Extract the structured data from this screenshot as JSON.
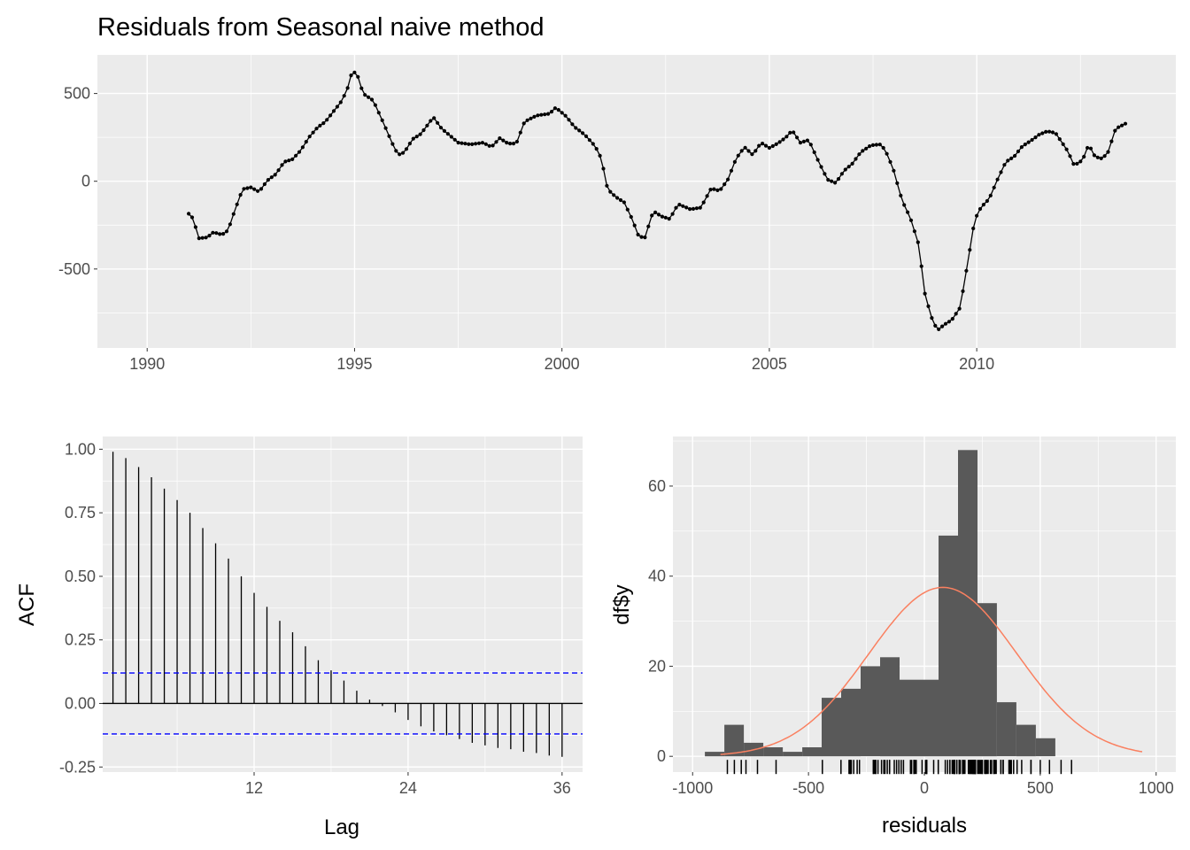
{
  "colors": {
    "panel_bg": "#ebebeb",
    "grid_major": "#ffffff",
    "line": "#000000",
    "bar_fill": "#595959",
    "ci_line": "#0000ff",
    "density_curve": "#fa8060",
    "tick_text": "#4d4d4d"
  },
  "chart_data": [
    {
      "type": "line",
      "title": "Residuals from Seasonal naive method",
      "xlabel": "",
      "ylabel": "",
      "xlim": [
        1988.8,
        2014.8
      ],
      "ylim": [
        -950,
        720
      ],
      "x_ticks": [
        1990,
        1995,
        2000,
        2005,
        2010
      ],
      "x_tick_labels": [
        "1990",
        "1995",
        "2000",
        "2005",
        "2010"
      ],
      "y_ticks": [
        -500,
        0,
        500
      ],
      "y_tick_labels": [
        "-500",
        "0",
        "500"
      ],
      "points": true,
      "start": 1991.0,
      "frequency": 12,
      "anchors": [
        [
          1991.0,
          -185
        ],
        [
          1991.1,
          -210
        ],
        [
          1991.25,
          -325
        ],
        [
          1991.45,
          -320
        ],
        [
          1991.6,
          -290
        ],
        [
          1991.8,
          -305
        ],
        [
          1991.95,
          -280
        ],
        [
          1992.1,
          -175
        ],
        [
          1992.3,
          -45
        ],
        [
          1992.5,
          -35
        ],
        [
          1992.7,
          -60
        ],
        [
          1992.9,
          5
        ],
        [
          1993.1,
          40
        ],
        [
          1993.3,
          110
        ],
        [
          1993.5,
          125
        ],
        [
          1993.7,
          175
        ],
        [
          1993.9,
          250
        ],
        [
          1994.1,
          305
        ],
        [
          1994.3,
          340
        ],
        [
          1994.5,
          400
        ],
        [
          1994.7,
          460
        ],
        [
          1994.85,
          540
        ],
        [
          1994.95,
          635
        ],
        [
          1995.1,
          590
        ],
        [
          1995.2,
          500
        ],
        [
          1995.45,
          460
        ],
        [
          1995.7,
          330
        ],
        [
          1995.9,
          220
        ],
        [
          1996.05,
          150
        ],
        [
          1996.2,
          165
        ],
        [
          1996.4,
          240
        ],
        [
          1996.6,
          270
        ],
        [
          1996.9,
          365
        ],
        [
          1997.1,
          300
        ],
        [
          1997.3,
          260
        ],
        [
          1997.5,
          220
        ],
        [
          1997.8,
          210
        ],
        [
          1998.1,
          220
        ],
        [
          1998.3,
          195
        ],
        [
          1998.5,
          245
        ],
        [
          1998.7,
          215
        ],
        [
          1998.9,
          215
        ],
        [
          1999.1,
          340
        ],
        [
          1999.4,
          375
        ],
        [
          1999.7,
          385
        ],
        [
          1999.85,
          420
        ],
        [
          2000.1,
          370
        ],
        [
          2000.3,
          310
        ],
        [
          2000.55,
          265
        ],
        [
          2000.8,
          200
        ],
        [
          2000.95,
          130
        ],
        [
          2001.1,
          -45
        ],
        [
          2001.3,
          -90
        ],
        [
          2001.5,
          -120
        ],
        [
          2001.7,
          -220
        ],
        [
          2001.85,
          -315
        ],
        [
          2002.0,
          -320
        ],
        [
          2002.2,
          -170
        ],
        [
          2002.4,
          -200
        ],
        [
          2002.6,
          -215
        ],
        [
          2002.8,
          -130
        ],
        [
          2003.1,
          -160
        ],
        [
          2003.35,
          -150
        ],
        [
          2003.6,
          -40
        ],
        [
          2003.8,
          -55
        ],
        [
          2004.0,
          10
        ],
        [
          2004.2,
          130
        ],
        [
          2004.4,
          195
        ],
        [
          2004.6,
          150
        ],
        [
          2004.8,
          220
        ],
        [
          2005.0,
          190
        ],
        [
          2005.2,
          215
        ],
        [
          2005.4,
          250
        ],
        [
          2005.55,
          290
        ],
        [
          2005.75,
          220
        ],
        [
          2005.95,
          235
        ],
        [
          2006.15,
          130
        ],
        [
          2006.4,
          10
        ],
        [
          2006.6,
          -10
        ],
        [
          2006.8,
          60
        ],
        [
          2007.0,
          100
        ],
        [
          2007.2,
          165
        ],
        [
          2007.45,
          205
        ],
        [
          2007.7,
          210
        ],
        [
          2007.85,
          150
        ],
        [
          2008.0,
          60
        ],
        [
          2008.2,
          -110
        ],
        [
          2008.4,
          -210
        ],
        [
          2008.6,
          -360
        ],
        [
          2008.75,
          -640
        ],
        [
          2008.9,
          -770
        ],
        [
          2009.05,
          -850
        ],
        [
          2009.2,
          -820
        ],
        [
          2009.4,
          -790
        ],
        [
          2009.6,
          -720
        ],
        [
          2009.8,
          -440
        ],
        [
          2009.95,
          -220
        ],
        [
          2010.1,
          -150
        ],
        [
          2010.3,
          -100
        ],
        [
          2010.5,
          10
        ],
        [
          2010.7,
          110
        ],
        [
          2010.9,
          140
        ],
        [
          2011.1,
          200
        ],
        [
          2011.3,
          230
        ],
        [
          2011.5,
          265
        ],
        [
          2011.7,
          285
        ],
        [
          2011.9,
          275
        ],
        [
          2012.1,
          205
        ],
        [
          2012.2,
          170
        ],
        [
          2012.35,
          90
        ],
        [
          2012.55,
          120
        ],
        [
          2012.7,
          210
        ],
        [
          2012.85,
          140
        ],
        [
          2013.0,
          130
        ],
        [
          2013.15,
          155
        ],
        [
          2013.35,
          300
        ],
        [
          2013.6,
          330
        ]
      ]
    },
    {
      "type": "bar",
      "subtype": "acf",
      "xlabel": "Lag",
      "ylabel": "ACF",
      "xlim": [
        0.2,
        37.6
      ],
      "ylim": [
        -0.27,
        1.05
      ],
      "x_ticks": [
        12,
        24,
        36
      ],
      "x_tick_labels": [
        "12",
        "24",
        "36"
      ],
      "y_ticks": [
        -0.25,
        0.0,
        0.25,
        0.5,
        0.75,
        1.0
      ],
      "y_tick_labels": [
        "-0.25",
        "0.00",
        "0.25",
        "0.50",
        "0.75",
        "1.00"
      ],
      "lags": [
        1,
        2,
        3,
        4,
        5,
        6,
        7,
        8,
        9,
        10,
        11,
        12,
        13,
        14,
        15,
        16,
        17,
        18,
        19,
        20,
        21,
        22,
        23,
        24,
        25,
        26,
        27,
        28,
        29,
        30,
        31,
        32,
        33,
        34,
        35,
        36
      ],
      "values": [
        0.99,
        0.965,
        0.93,
        0.89,
        0.845,
        0.8,
        0.75,
        0.69,
        0.63,
        0.57,
        0.5,
        0.435,
        0.38,
        0.325,
        0.28,
        0.225,
        0.17,
        0.13,
        0.09,
        0.05,
        0.015,
        -0.01,
        -0.035,
        -0.065,
        -0.09,
        -0.11,
        -0.125,
        -0.14,
        -0.155,
        -0.165,
        -0.175,
        -0.18,
        -0.19,
        -0.195,
        -0.205,
        -0.21
      ],
      "ci_bound": 0.12
    },
    {
      "type": "bar",
      "subtype": "histogram",
      "xlabel": "residuals",
      "ylabel": "df$y",
      "xlim": [
        -1085,
        1085
      ],
      "ylim": [
        -3.5,
        71
      ],
      "x_ticks": [
        -1000,
        -500,
        0,
        500,
        1000
      ],
      "x_tick_labels": [
        "-1000",
        "-500",
        "0",
        "500",
        "1000"
      ],
      "y_ticks": [
        0,
        20,
        40,
        60
      ],
      "y_tick_labels": [
        "0",
        "20",
        "40",
        "60"
      ],
      "bin_width": 84,
      "bin_centers": [
        -905,
        -821,
        -737,
        -653,
        -569,
        -485,
        -401,
        -317,
        -233,
        -149,
        -65,
        19,
        103,
        187,
        271,
        355,
        439,
        523,
        607
      ],
      "counts": [
        1,
        7,
        3,
        2,
        1,
        2,
        13,
        15,
        20,
        22,
        17,
        17,
        49,
        68,
        34,
        12,
        7,
        4,
        0
      ],
      "density_mean": 80,
      "density_sd": 320,
      "density_peak": 37.5,
      "density_range": [
        -880,
        940
      ]
    }
  ]
}
